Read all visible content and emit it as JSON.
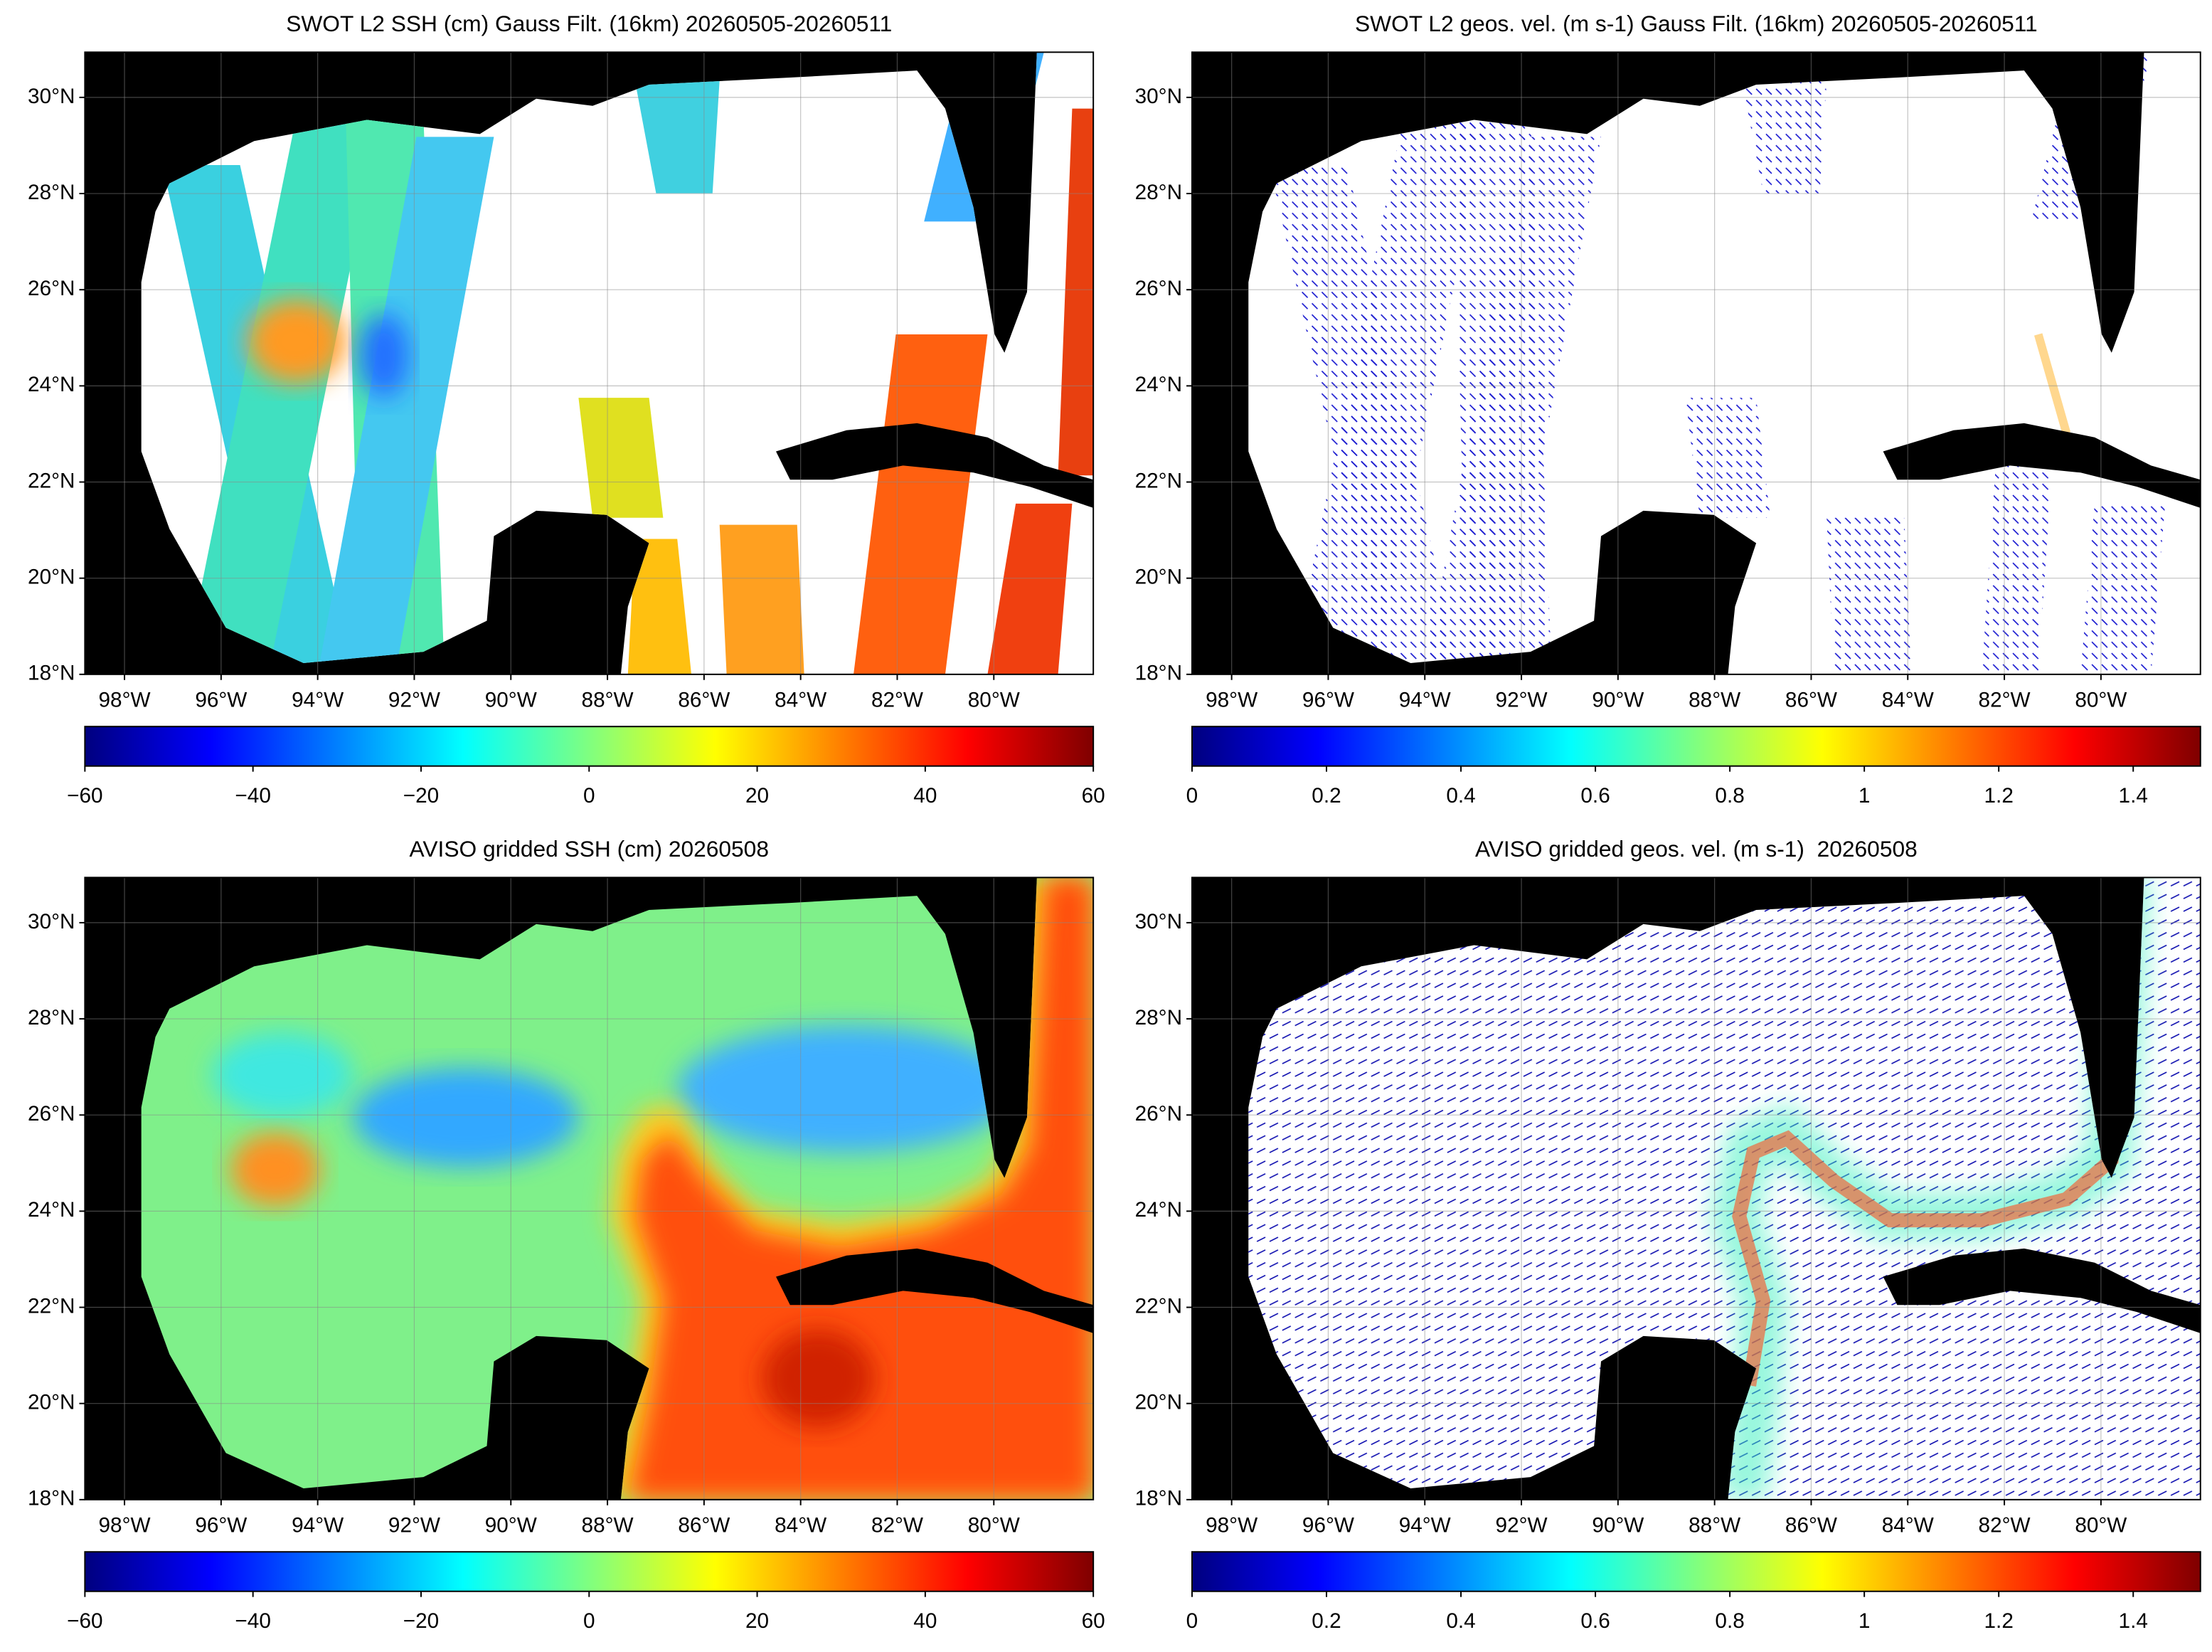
{
  "panels": [
    {
      "title": "SWOT L2 SSH (cm) Gauss Filt. (16km) 20260505-20260511",
      "xlim": [
        -98.82,
        -77.94
      ],
      "ylim": [
        18,
        30.94
      ],
      "xticks": [
        {
          "value": -98,
          "label": "98°W"
        },
        {
          "value": -96,
          "label": "96°W"
        },
        {
          "value": -94,
          "label": "94°W"
        },
        {
          "value": -92,
          "label": "92°W"
        },
        {
          "value": -90,
          "label": "90°W"
        },
        {
          "value": -88,
          "label": "88°W"
        },
        {
          "value": -86,
          "label": "86°W"
        },
        {
          "value": -84,
          "label": "84°W"
        },
        {
          "value": -82,
          "label": "82°W"
        },
        {
          "value": -80,
          "label": "80°W"
        }
      ],
      "yticks": [
        {
          "value": 18,
          "label": "18°N"
        },
        {
          "value": 20,
          "label": "20°N"
        },
        {
          "value": 22,
          "label": "22°N"
        },
        {
          "value": 24,
          "label": "24°N"
        },
        {
          "value": 26,
          "label": "26°N"
        },
        {
          "value": 28,
          "label": "28°N"
        },
        {
          "value": 30,
          "label": "30°N"
        }
      ],
      "colorbar": {
        "lim": [
          -60,
          60
        ],
        "ticks": [
          {
            "value": -60,
            "label": "−60"
          },
          {
            "value": -40,
            "label": "−40"
          },
          {
            "value": -20,
            "label": "−20"
          },
          0,
          20,
          40,
          60
        ]
      }
    },
    {
      "title": "SWOT L2 geos. vel. (m s-1) Gauss Filt. (16km) 20260505-20260511",
      "xlim": [
        -98.82,
        -77.94
      ],
      "ylim": [
        18,
        30.94
      ],
      "xticks": [
        {
          "value": -98,
          "label": "98°W"
        },
        {
          "value": -96,
          "label": "96°W"
        },
        {
          "value": -94,
          "label": "94°W"
        },
        {
          "value": -92,
          "label": "92°W"
        },
        {
          "value": -90,
          "label": "90°W"
        },
        {
          "value": -88,
          "label": "88°W"
        },
        {
          "value": -86,
          "label": "86°W"
        },
        {
          "value": -84,
          "label": "84°W"
        },
        {
          "value": -82,
          "label": "82°W"
        },
        {
          "value": -80,
          "label": "80°W"
        }
      ],
      "yticks": [
        {
          "value": 18,
          "label": "18°N"
        },
        {
          "value": 20,
          "label": "20°N"
        },
        {
          "value": 22,
          "label": "22°N"
        },
        {
          "value": 24,
          "label": "24°N"
        },
        {
          "value": 26,
          "label": "26°N"
        },
        {
          "value": 28,
          "label": "28°N"
        },
        {
          "value": 30,
          "label": "30°N"
        }
      ],
      "colorbar": {
        "lim": [
          0,
          1.5
        ],
        "ticks": [
          0,
          0.2,
          0.4,
          0.6,
          0.8,
          1,
          1.2,
          1.4
        ]
      }
    },
    {
      "title": "AVISO gridded SSH (cm) 20260508",
      "xlim": [
        -98.82,
        -77.94
      ],
      "ylim": [
        18,
        30.94
      ],
      "xticks": [
        {
          "value": -98,
          "label": "98°W"
        },
        {
          "value": -96,
          "label": "96°W"
        },
        {
          "value": -94,
          "label": "94°W"
        },
        {
          "value": -92,
          "label": "92°W"
        },
        {
          "value": -90,
          "label": "90°W"
        },
        {
          "value": -88,
          "label": "88°W"
        },
        {
          "value": -86,
          "label": "86°W"
        },
        {
          "value": -84,
          "label": "84°W"
        },
        {
          "value": -82,
          "label": "82°W"
        },
        {
          "value": -80,
          "label": "80°W"
        }
      ],
      "yticks": [
        {
          "value": 18,
          "label": "18°N"
        },
        {
          "value": 20,
          "label": "20°N"
        },
        {
          "value": 22,
          "label": "22°N"
        },
        {
          "value": 24,
          "label": "24°N"
        },
        {
          "value": 26,
          "label": "26°N"
        },
        {
          "value": 28,
          "label": "28°N"
        },
        {
          "value": 30,
          "label": "30°N"
        }
      ],
      "colorbar": {
        "lim": [
          -60,
          60
        ],
        "ticks": [
          {
            "value": -60,
            "label": "−60"
          },
          {
            "value": -40,
            "label": "−40"
          },
          {
            "value": -20,
            "label": "−20"
          },
          0,
          20,
          40,
          60
        ]
      }
    },
    {
      "title": "AVISO gridded geos. vel. (m s-1)  20260508",
      "xlim": [
        -98.82,
        -77.94
      ],
      "ylim": [
        18,
        30.94
      ],
      "xticks": [
        {
          "value": -98,
          "label": "98°W"
        },
        {
          "value": -96,
          "label": "96°W"
        },
        {
          "value": -94,
          "label": "94°W"
        },
        {
          "value": -92,
          "label": "92°W"
        },
        {
          "value": -90,
          "label": "90°W"
        },
        {
          "value": -88,
          "label": "88°W"
        },
        {
          "value": -86,
          "label": "86°W"
        },
        {
          "value": -84,
          "label": "84°W"
        },
        {
          "value": -82,
          "label": "82°W"
        },
        {
          "value": -80,
          "label": "80°W"
        }
      ],
      "yticks": [
        {
          "value": 18,
          "label": "18°N"
        },
        {
          "value": 20,
          "label": "20°N"
        },
        {
          "value": 22,
          "label": "22°N"
        },
        {
          "value": 24,
          "label": "24°N"
        },
        {
          "value": 26,
          "label": "26°N"
        },
        {
          "value": 28,
          "label": "28°N"
        },
        {
          "value": 30,
          "label": "30°N"
        }
      ],
      "colorbar": {
        "lim": [
          0,
          1.5
        ],
        "ticks": [
          0,
          0.2,
          0.4,
          0.6,
          0.8,
          1,
          1.2,
          1.4
        ]
      }
    }
  ]
}
